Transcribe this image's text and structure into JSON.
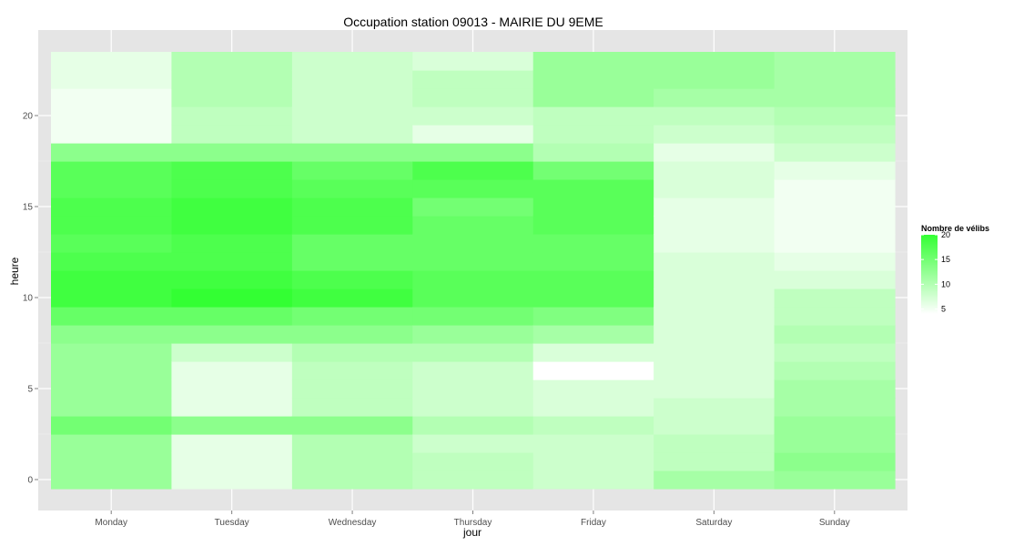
{
  "chart_data": {
    "type": "heatmap",
    "title": "Occupation station 09013 - MAIRIE DU 9EME",
    "xlabel": "jour",
    "ylabel": "heure",
    "x_categories": [
      "Monday",
      "Tuesday",
      "Wednesday",
      "Thursday",
      "Friday",
      "Saturday",
      "Sunday"
    ],
    "y_range": [
      0,
      23
    ],
    "y_ticks": [
      0,
      5,
      10,
      15,
      20
    ],
    "grid": true,
    "legend": {
      "title": "Nombre de vélibs",
      "ticks": [
        5,
        10,
        15,
        20
      ],
      "min": 4,
      "max": 20,
      "low_color": "#ffffff",
      "high_color": "#33ff33",
      "placement": "right"
    },
    "values": {
      "Monday": [
        12,
        12,
        12,
        15,
        12,
        12,
        12,
        12,
        13,
        16,
        19,
        19,
        18,
        17,
        18,
        18,
        17,
        17,
        13,
        5,
        5,
        5,
        6,
        6
      ],
      "Tuesday": [
        6,
        6,
        6,
        13,
        6,
        6,
        6,
        8,
        13,
        16,
        20,
        19,
        18,
        18,
        19,
        19,
        18,
        18,
        13,
        9,
        9,
        10,
        10,
        10
      ],
      "Wednesday": [
        10,
        10,
        10,
        13,
        9,
        9,
        9,
        10,
        13,
        15,
        19,
        18,
        16,
        16,
        18,
        18,
        17,
        16,
        13,
        8,
        8,
        8,
        8,
        8
      ],
      "Thursday": [
        9,
        9,
        8,
        10,
        8,
        8,
        8,
        10,
        12,
        15,
        17,
        17,
        16,
        16,
        16,
        15,
        17,
        18,
        13,
        6,
        8,
        9,
        9,
        7
      ],
      "Friday": [
        8,
        8,
        8,
        9,
        7,
        7,
        4,
        7,
        11,
        14,
        17,
        17,
        16,
        16,
        17,
        17,
        17,
        15,
        10,
        9,
        9,
        12,
        12,
        12
      ],
      "Saturday": [
        11,
        9,
        9,
        8,
        8,
        7,
        7,
        7,
        7,
        7,
        7,
        7,
        7,
        6,
        6,
        6,
        7,
        7,
        6,
        8,
        9,
        11,
        12,
        12
      ],
      "Sunday": [
        12,
        13,
        12,
        12,
        11,
        11,
        10,
        9,
        10,
        9,
        9,
        7,
        6,
        5,
        5,
        5,
        5,
        6,
        8,
        9,
        10,
        11,
        11,
        11
      ]
    }
  }
}
